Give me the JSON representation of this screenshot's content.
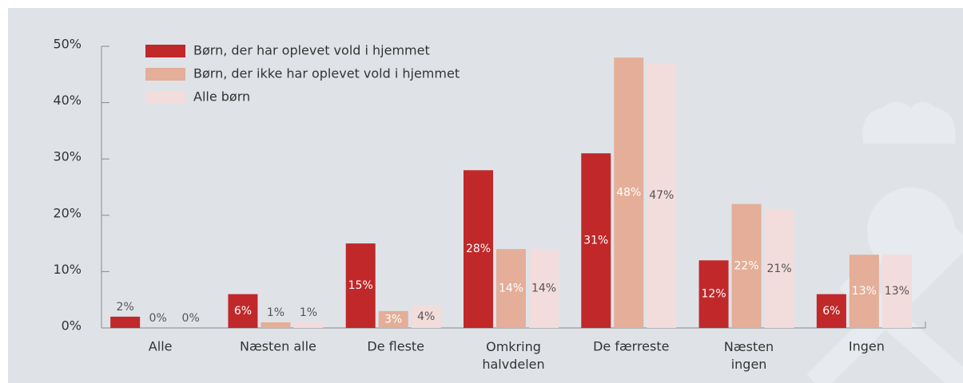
{
  "chart_data": {
    "type": "bar",
    "categories": [
      "Alle",
      "Næsten alle",
      "De fleste",
      "Omkring\nhalvdelen",
      "De færreste",
      "Næsten\ningen",
      "Ingen"
    ],
    "series": [
      {
        "name": "Børn, der har oplevet vold i hjemmet",
        "color": "#c0282a",
        "values": [
          2,
          6,
          15,
          28,
          31,
          12,
          6
        ],
        "value_labels": [
          "2%",
          "6%",
          "15%",
          "28%",
          "31%",
          "12%",
          "6%"
        ]
      },
      {
        "name": "Børn, der ikke har oplevet vold i hjemmet",
        "color": "#e4ae98",
        "values": [
          0,
          1,
          3,
          14,
          48,
          22,
          13
        ],
        "value_labels": [
          "0%",
          "1%",
          "3%",
          "14%",
          "48%",
          "22%",
          "13%"
        ]
      },
      {
        "name": "Alle børn",
        "color": "#f2dcdc",
        "values": [
          0,
          1,
          4,
          14,
          47,
          21,
          13
        ],
        "value_labels": [
          "0%",
          "1%",
          "4%",
          "14%",
          "47%",
          "21%",
          "13%"
        ]
      }
    ],
    "ylim": [
      0,
      50
    ],
    "yticks": [
      {
        "value": 0,
        "label": "0%"
      },
      {
        "value": 10,
        "label": "10%"
      },
      {
        "value": 20,
        "label": "20%"
      },
      {
        "value": 30,
        "label": "30%"
      },
      {
        "value": 40,
        "label": "40%"
      },
      {
        "value": 50,
        "label": "50%"
      }
    ],
    "grid": false,
    "legend": "top-left"
  }
}
